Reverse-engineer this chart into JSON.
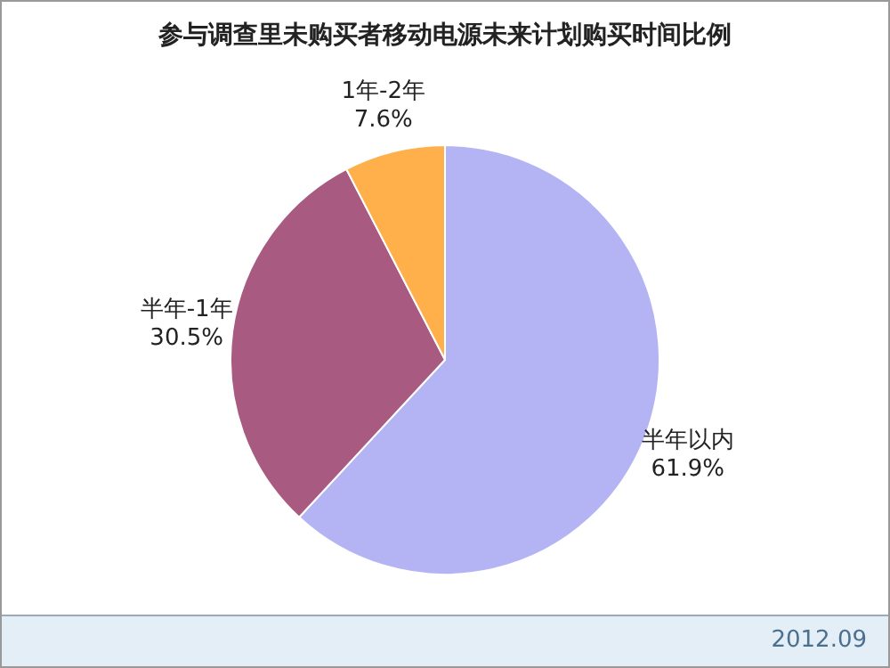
{
  "chart_data": {
    "type": "pie",
    "title": "参与调查里未购买者移动电源未来计划购买时间比例",
    "categories": [
      "半年以内",
      "半年-1年",
      "1年-2年"
    ],
    "values": [
      61.9,
      30.5,
      7.6
    ],
    "value_labels": [
      "61.9%",
      "30.5%",
      "7.6%"
    ],
    "colors": [
      "#b4b4f4",
      "#a85a80",
      "#ffb04a"
    ],
    "legend": false,
    "annotations": [
      "2012.09"
    ]
  }
}
